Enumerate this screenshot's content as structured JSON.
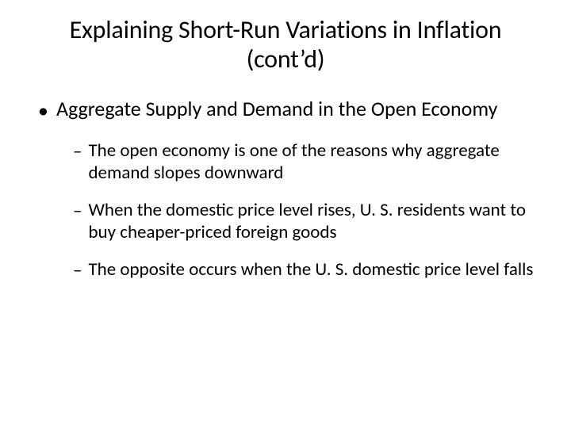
{
  "title": "Explaining Short-Run Variations in Inflation (cont’d)",
  "level1": {
    "bullet": "•",
    "text": "Aggregate Supply and Demand in the Open Economy"
  },
  "level2": [
    {
      "dash": "–",
      "text": "The open economy is one of the reasons why aggregate demand slopes downward"
    },
    {
      "dash": "–",
      "text": "When the domestic price level rises, U. S. residents want to buy cheaper-priced foreign goods"
    },
    {
      "dash": "–",
      "text": "The opposite occurs when the U. S. domestic price level falls"
    }
  ]
}
